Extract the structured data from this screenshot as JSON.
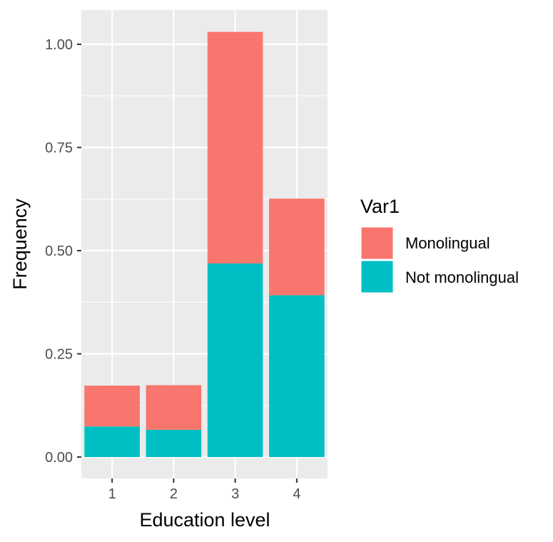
{
  "chart_data": {
    "type": "bar",
    "stacked": true,
    "xlabel": "Education level",
    "ylabel": "Frequency",
    "categories": [
      "1",
      "2",
      "3",
      "4"
    ],
    "y_ticks": [
      "0.00",
      "0.25",
      "0.50",
      "0.75",
      "1.00"
    ],
    "ylim": [
      -0.05,
      1.08
    ],
    "grid": true,
    "legend": {
      "title": "Var1",
      "placement": "right"
    },
    "series": [
      {
        "name": "Not monolingual",
        "color": "#00BFC4",
        "values": [
          0.074,
          0.066,
          0.469,
          0.392
        ]
      },
      {
        "name": "Monolingual",
        "color": "#F8766D",
        "values": [
          0.099,
          0.108,
          0.561,
          0.234
        ]
      }
    ]
  }
}
